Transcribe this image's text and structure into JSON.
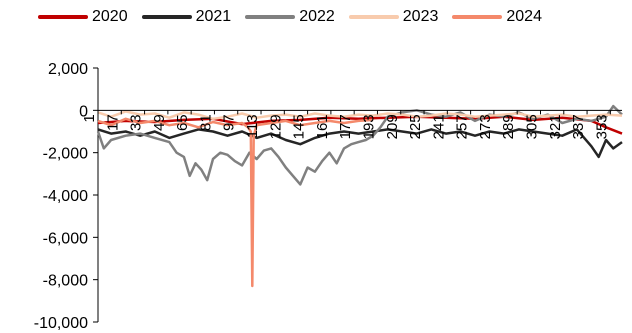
{
  "chart_data": {
    "type": "line",
    "title": "",
    "xlabel": "",
    "ylabel": "",
    "ylim": [
      -10000,
      2000
    ],
    "yticks": [
      2000,
      0,
      -2000,
      -4000,
      -6000,
      -8000,
      -10000
    ],
    "ytick_labels": [
      "2,000",
      "0",
      "-2,000",
      "-4,000",
      "-6,000",
      "-8,000",
      "-10,000"
    ],
    "xlim": [
      1,
      361
    ],
    "xticks": [
      1,
      17,
      33,
      49,
      65,
      81,
      97,
      113,
      129,
      145,
      161,
      177,
      193,
      209,
      225,
      241,
      257,
      273,
      289,
      305,
      321,
      337,
      353
    ],
    "xtick_labels": [
      "1",
      "17",
      "33",
      "49",
      "65",
      "81",
      "97",
      "113",
      "129",
      "145",
      "161",
      "177",
      "193",
      "209",
      "225",
      "241",
      "257",
      "273",
      "289",
      "305",
      "321",
      "337",
      "353"
    ],
    "grid": false,
    "legend_position": "top",
    "series": [
      {
        "name": "2020",
        "color": "#c00000",
        "x": [
          1,
          20,
          40,
          60,
          80,
          100,
          120,
          140,
          160,
          180,
          200,
          220,
          240,
          260,
          280,
          300,
          320,
          340,
          350,
          361
        ],
        "y": [
          -600,
          -500,
          -550,
          -450,
          -400,
          -650,
          -500,
          -450,
          -350,
          -400,
          -350,
          -300,
          -350,
          -400,
          -300,
          -450,
          -350,
          -500,
          -800,
          -1100
        ]
      },
      {
        "name": "2021",
        "color": "#262626",
        "x": [
          1,
          10,
          20,
          30,
          40,
          50,
          60,
          70,
          80,
          90,
          100,
          110,
          120,
          130,
          140,
          150,
          160,
          170,
          180,
          190,
          200,
          210,
          220,
          230,
          240,
          250,
          260,
          270,
          280,
          290,
          300,
          310,
          320,
          330,
          340,
          345,
          350,
          355,
          361
        ],
        "y": [
          -900,
          -1100,
          -1000,
          -1200,
          -1000,
          -1300,
          -1100,
          -900,
          -1000,
          -1200,
          -1000,
          -1300,
          -1100,
          -1400,
          -1600,
          -1300,
          -1100,
          -1000,
          -1100,
          -1000,
          -900,
          -1000,
          -1100,
          -900,
          -1100,
          -1000,
          -1200,
          -1000,
          -1100,
          -900,
          -1000,
          -1100,
          -1200,
          -900,
          -1700,
          -2200,
          -1400,
          -1800,
          -1500
        ]
      },
      {
        "name": "2022",
        "color": "#808080",
        "x": [
          1,
          5,
          10,
          20,
          30,
          40,
          50,
          55,
          60,
          64,
          68,
          72,
          76,
          80,
          85,
          90,
          95,
          100,
          105,
          110,
          115,
          120,
          125,
          130,
          135,
          140,
          145,
          150,
          155,
          160,
          165,
          170,
          175,
          180,
          185,
          190,
          195,
          200,
          210,
          220,
          230,
          240,
          250,
          260,
          270,
          280,
          290,
          300,
          310,
          320,
          330,
          340,
          350,
          355,
          361
        ],
        "y": [
          -1000,
          -1800,
          -1400,
          -1200,
          -1100,
          -1300,
          -1500,
          -2000,
          -2200,
          -3100,
          -2500,
          -2800,
          -3300,
          -2300,
          -2000,
          -2100,
          -2400,
          -2600,
          -2000,
          -2300,
          -1900,
          -1800,
          -2200,
          -2700,
          -3100,
          -3500,
          -2700,
          -2900,
          -2400,
          -2000,
          -2500,
          -1800,
          -1600,
          -1500,
          -1400,
          -1200,
          -800,
          -300,
          -100,
          0,
          -200,
          -300,
          -100,
          -500,
          -200,
          -300,
          -100,
          -400,
          -200,
          -600,
          -400,
          -500,
          -300,
          200,
          -200
        ]
      },
      {
        "name": "2023",
        "color": "#f8cbad",
        "x": [
          1,
          10,
          20,
          30,
          40,
          50,
          60,
          70,
          80,
          90,
          100,
          110,
          120,
          130,
          140,
          150,
          160,
          170,
          180,
          190,
          200,
          210,
          220,
          230,
          240,
          250,
          260,
          270,
          280,
          290,
          300,
          310,
          320,
          330,
          340,
          350,
          361
        ],
        "y": [
          -100,
          -300,
          -50,
          -200,
          -150,
          -350,
          -100,
          -200,
          -400,
          -300,
          -150,
          -350,
          -250,
          -200,
          -300,
          -150,
          -250,
          -300,
          -200,
          -250,
          -150,
          -200,
          -300,
          -250,
          -150,
          -200,
          -300,
          -250,
          -200,
          -150,
          -300,
          -250,
          -200,
          -300,
          -250,
          -200,
          -250
        ]
      },
      {
        "name": "2024",
        "color": "#f4896b",
        "x": [
          1,
          10,
          20,
          30,
          40,
          50,
          60,
          70,
          80,
          90,
          100,
          104,
          106,
          107,
          108,
          110,
          120,
          130,
          140,
          150,
          160,
          170,
          180,
          190
        ],
        "y": [
          -500,
          -700,
          -400,
          -600,
          -500,
          -700,
          -600,
          -800,
          -550,
          -700,
          -600,
          -800,
          -1000,
          -8300,
          -1200,
          -700,
          -600,
          -500,
          -700,
          -600,
          -500,
          -600,
          -500,
          -450
        ]
      }
    ]
  }
}
